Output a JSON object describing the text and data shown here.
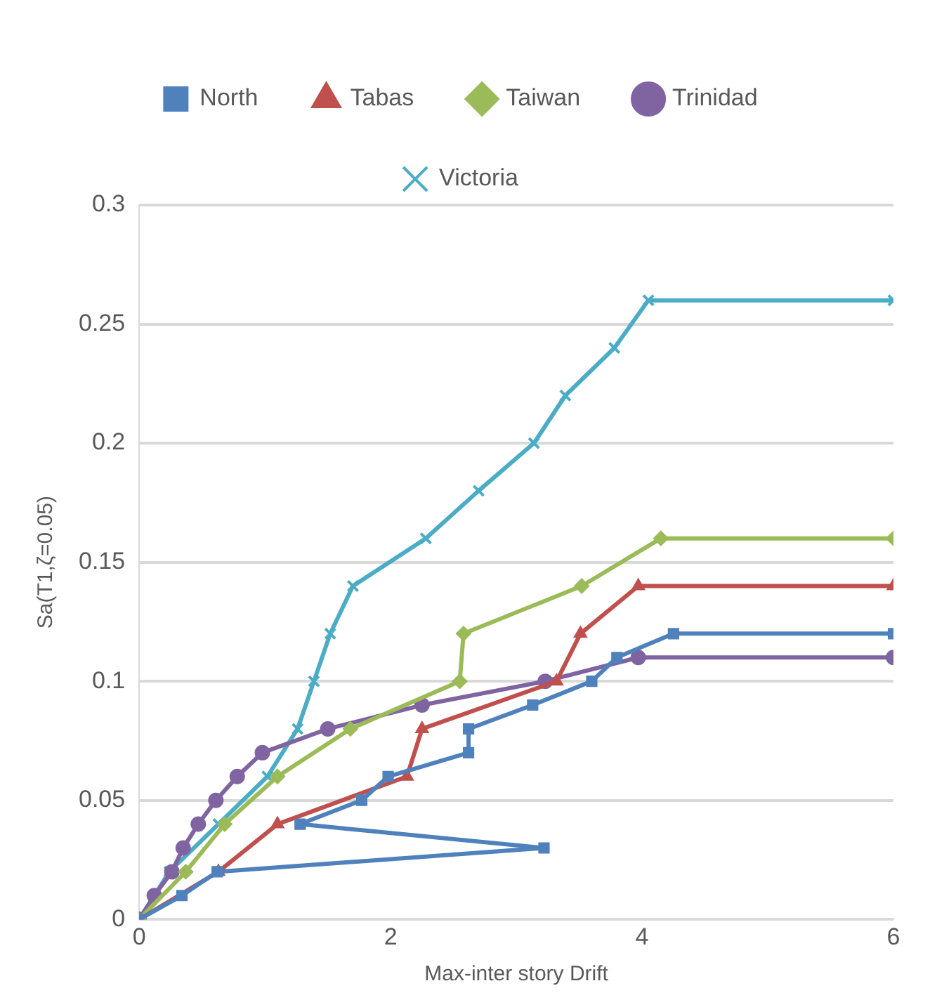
{
  "chart_data": {
    "type": "line",
    "xlabel": "Max-inter story Drift",
    "ylabel": "Sa(T1,ζ=0.05)",
    "xlim": [
      0,
      6
    ],
    "xticks": [
      0,
      2,
      4,
      6
    ],
    "ylim": [
      0,
      0.3
    ],
    "yticks": [
      0,
      0.05,
      0.1,
      0.15,
      0.2,
      0.25,
      0.3
    ],
    "grid": "y",
    "legend": "top",
    "line_style": "solid",
    "series": [
      {
        "name": "North",
        "color": "#4f81bd",
        "marker": "square",
        "x": [
          0,
          0.34,
          0.62,
          3.22,
          1.28,
          1.77,
          1.98,
          2.62,
          2.62,
          3.13,
          3.6,
          3.8,
          4.25,
          6
        ],
        "values": [
          0,
          0.01,
          0.02,
          0.03,
          0.04,
          0.05,
          0.06,
          0.07,
          0.08,
          0.09,
          0.1,
          0.11,
          0.12,
          0.12
        ]
      },
      {
        "name": "Tabas",
        "color": "#c0504d",
        "marker": "triangle",
        "x": [
          0,
          0.63,
          1.1,
          2.13,
          2.25,
          3.32,
          3.51,
          3.97,
          6
        ],
        "values": [
          0,
          0.02,
          0.04,
          0.06,
          0.08,
          0.1,
          0.12,
          0.14,
          0.14
        ]
      },
      {
        "name": "Taiwan",
        "color": "#9bbb59",
        "marker": "diamond",
        "x": [
          0,
          0.37,
          0.68,
          1.1,
          1.68,
          2.55,
          2.58,
          3.52,
          4.15,
          6
        ],
        "values": [
          0,
          0.02,
          0.04,
          0.06,
          0.08,
          0.1,
          0.12,
          0.14,
          0.16,
          0.16
        ]
      },
      {
        "name": "Trinidad",
        "color": "#8064a2",
        "marker": "circle",
        "x": [
          0,
          0.12,
          0.26,
          0.35,
          0.47,
          0.61,
          0.78,
          0.98,
          1.5,
          2.25,
          3.23,
          3.97,
          6
        ],
        "values": [
          0,
          0.01,
          0.02,
          0.03,
          0.04,
          0.05,
          0.06,
          0.07,
          0.08,
          0.09,
          0.1,
          0.11,
          0.11
        ]
      },
      {
        "name": "Victoria",
        "color": "#4bacc6",
        "marker": "cross",
        "x": [
          0,
          0.24,
          0.63,
          1.02,
          1.26,
          1.39,
          1.52,
          1.7,
          2.28,
          2.7,
          3.14,
          3.39,
          3.78,
          4.05,
          6
        ],
        "values": [
          0,
          0.02,
          0.04,
          0.06,
          0.08,
          0.1,
          0.12,
          0.14,
          0.16,
          0.18,
          0.2,
          0.22,
          0.24,
          0.26,
          0.26
        ]
      }
    ]
  }
}
